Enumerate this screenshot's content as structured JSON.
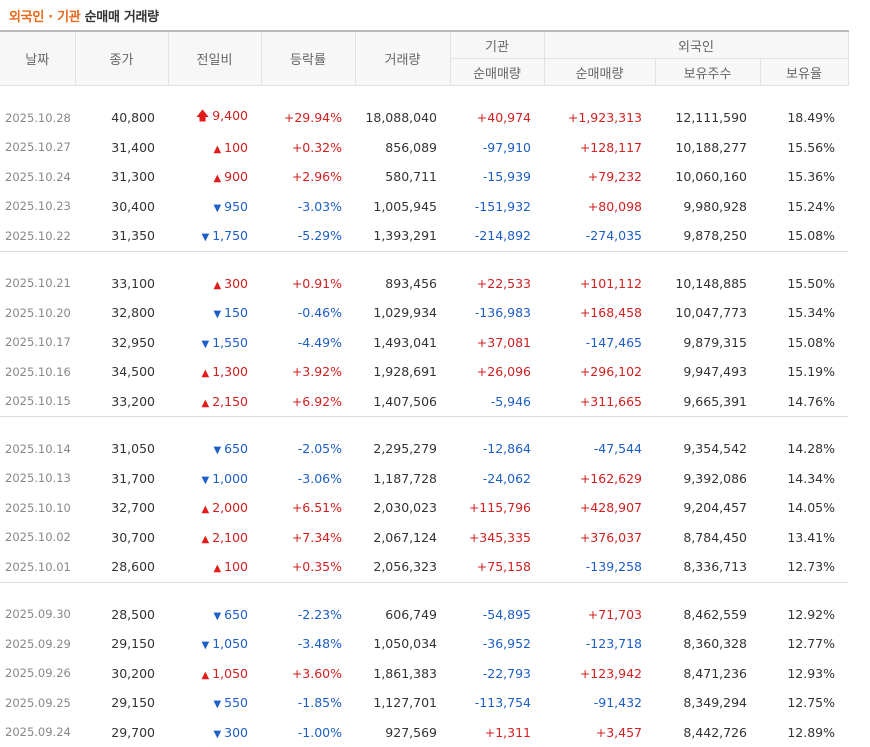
{
  "title": {
    "part1": "외국인",
    "sep": " · ",
    "part2": "기관",
    "part3": " 순매매 거래량"
  },
  "headers": {
    "date": "날짜",
    "close": "종가",
    "change": "전일비",
    "rate": "등락률",
    "volume": "거래량",
    "inst_group": "기관",
    "inst_net": "순매매량",
    "foreign_group": "외국인",
    "foreign_net": "순매매량",
    "holdings": "보유주수",
    "holding_ratio": "보유율"
  },
  "colors": {
    "rise": "#d21f1f",
    "fall": "#1d5ec7",
    "accent": "#e8691c"
  },
  "groups": [
    [
      {
        "date": "2025.10.28",
        "close": "40,800",
        "dir": "limit_up",
        "change": "9,400",
        "rate": "+29.94%",
        "volume": "18,088,040",
        "inst": "+40,974",
        "foreign": "+1,923,313",
        "holdings": "12,111,590",
        "ratio": "18.49%"
      },
      {
        "date": "2025.10.27",
        "close": "31,400",
        "dir": "up",
        "change": "100",
        "rate": "+0.32%",
        "volume": "856,089",
        "inst": "-97,910",
        "foreign": "+128,117",
        "holdings": "10,188,277",
        "ratio": "15.56%"
      },
      {
        "date": "2025.10.24",
        "close": "31,300",
        "dir": "up",
        "change": "900",
        "rate": "+2.96%",
        "volume": "580,711",
        "inst": "-15,939",
        "foreign": "+79,232",
        "holdings": "10,060,160",
        "ratio": "15.36%"
      },
      {
        "date": "2025.10.23",
        "close": "30,400",
        "dir": "down",
        "change": "950",
        "rate": "-3.03%",
        "volume": "1,005,945",
        "inst": "-151,932",
        "foreign": "+80,098",
        "holdings": "9,980,928",
        "ratio": "15.24%"
      },
      {
        "date": "2025.10.22",
        "close": "31,350",
        "dir": "down",
        "change": "1,750",
        "rate": "-5.29%",
        "volume": "1,393,291",
        "inst": "-214,892",
        "foreign": "-274,035",
        "holdings": "9,878,250",
        "ratio": "15.08%"
      }
    ],
    [
      {
        "date": "2025.10.21",
        "close": "33,100",
        "dir": "up",
        "change": "300",
        "rate": "+0.91%",
        "volume": "893,456",
        "inst": "+22,533",
        "foreign": "+101,112",
        "holdings": "10,148,885",
        "ratio": "15.50%"
      },
      {
        "date": "2025.10.20",
        "close": "32,800",
        "dir": "down",
        "change": "150",
        "rate": "-0.46%",
        "volume": "1,029,934",
        "inst": "-136,983",
        "foreign": "+168,458",
        "holdings": "10,047,773",
        "ratio": "15.34%"
      },
      {
        "date": "2025.10.17",
        "close": "32,950",
        "dir": "down",
        "change": "1,550",
        "rate": "-4.49%",
        "volume": "1,493,041",
        "inst": "+37,081",
        "foreign": "-147,465",
        "holdings": "9,879,315",
        "ratio": "15.08%"
      },
      {
        "date": "2025.10.16",
        "close": "34,500",
        "dir": "up",
        "change": "1,300",
        "rate": "+3.92%",
        "volume": "1,928,691",
        "inst": "+26,096",
        "foreign": "+296,102",
        "holdings": "9,947,493",
        "ratio": "15.19%"
      },
      {
        "date": "2025.10.15",
        "close": "33,200",
        "dir": "up",
        "change": "2,150",
        "rate": "+6.92%",
        "volume": "1,407,506",
        "inst": "-5,946",
        "foreign": "+311,665",
        "holdings": "9,665,391",
        "ratio": "14.76%"
      }
    ],
    [
      {
        "date": "2025.10.14",
        "close": "31,050",
        "dir": "down",
        "change": "650",
        "rate": "-2.05%",
        "volume": "2,295,279",
        "inst": "-12,864",
        "foreign": "-47,544",
        "holdings": "9,354,542",
        "ratio": "14.28%"
      },
      {
        "date": "2025.10.13",
        "close": "31,700",
        "dir": "down",
        "change": "1,000",
        "rate": "-3.06%",
        "volume": "1,187,728",
        "inst": "-24,062",
        "foreign": "+162,629",
        "holdings": "9,392,086",
        "ratio": "14.34%"
      },
      {
        "date": "2025.10.10",
        "close": "32,700",
        "dir": "up",
        "change": "2,000",
        "rate": "+6.51%",
        "volume": "2,030,023",
        "inst": "+115,796",
        "foreign": "+428,907",
        "holdings": "9,204,457",
        "ratio": "14.05%"
      },
      {
        "date": "2025.10.02",
        "close": "30,700",
        "dir": "up",
        "change": "2,100",
        "rate": "+7.34%",
        "volume": "2,067,124",
        "inst": "+345,335",
        "foreign": "+376,037",
        "holdings": "8,784,450",
        "ratio": "13.41%"
      },
      {
        "date": "2025.10.01",
        "close": "28,600",
        "dir": "up",
        "change": "100",
        "rate": "+0.35%",
        "volume": "2,056,323",
        "inst": "+75,158",
        "foreign": "-139,258",
        "holdings": "8,336,713",
        "ratio": "12.73%"
      }
    ],
    [
      {
        "date": "2025.09.30",
        "close": "28,500",
        "dir": "down",
        "change": "650",
        "rate": "-2.23%",
        "volume": "606,749",
        "inst": "-54,895",
        "foreign": "+71,703",
        "holdings": "8,462,559",
        "ratio": "12.92%"
      },
      {
        "date": "2025.09.29",
        "close": "29,150",
        "dir": "down",
        "change": "1,050",
        "rate": "-3.48%",
        "volume": "1,050,034",
        "inst": "-36,952",
        "foreign": "-123,718",
        "holdings": "8,360,328",
        "ratio": "12.77%"
      },
      {
        "date": "2025.09.26",
        "close": "30,200",
        "dir": "up",
        "change": "1,050",
        "rate": "+3.60%",
        "volume": "1,861,383",
        "inst": "-22,793",
        "foreign": "+123,942",
        "holdings": "8,471,236",
        "ratio": "12.93%"
      },
      {
        "date": "2025.09.25",
        "close": "29,150",
        "dir": "down",
        "change": "550",
        "rate": "-1.85%",
        "volume": "1,127,701",
        "inst": "-113,754",
        "foreign": "-91,432",
        "holdings": "8,349,294",
        "ratio": "12.75%"
      },
      {
        "date": "2025.09.24",
        "close": "29,700",
        "dir": "down",
        "change": "300",
        "rate": "-1.00%",
        "volume": "927,569",
        "inst": "+1,311",
        "foreign": "+3,457",
        "holdings": "8,442,726",
        "ratio": "12.89%"
      }
    ]
  ]
}
